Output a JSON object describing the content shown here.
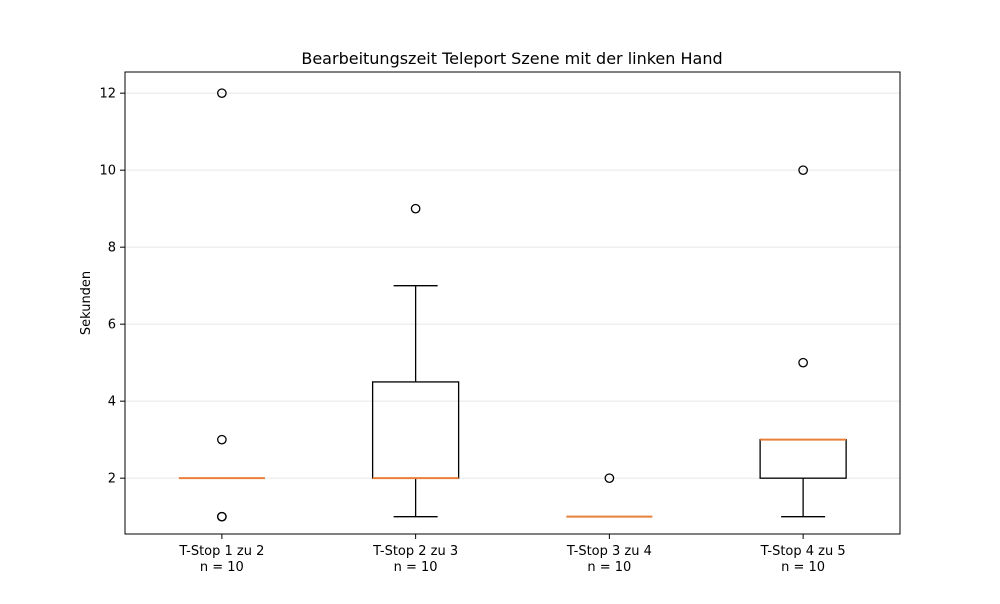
{
  "chart_data": {
    "type": "box",
    "title": "Bearbeitungszeit Teleport Szene mit der linken Hand",
    "xlabel": "",
    "ylabel": "Sekunden",
    "ylim": [
      0.55,
      12.55
    ],
    "yticks": [
      2,
      4,
      6,
      8,
      10,
      12
    ],
    "grid": "horizontal",
    "categories": [
      "T-Stop 1 zu 2\nn = 10",
      "T-Stop 2 zu 3\nn = 10",
      "T-Stop 3 zu 4\nn = 10",
      "T-Stop 4 zu 5\nn = 10"
    ],
    "boxes": [
      {
        "q1": 2,
        "median": 2,
        "q3": 2,
        "whisker_low": 2,
        "whisker_high": 2,
        "outliers": [
          12,
          3,
          1,
          1
        ]
      },
      {
        "q1": 2,
        "median": 2,
        "q3": 4.5,
        "whisker_low": 1,
        "whisker_high": 7,
        "outliers": [
          9
        ]
      },
      {
        "q1": 1,
        "median": 1,
        "q3": 1,
        "whisker_low": 1,
        "whisker_high": 1,
        "outliers": [
          2
        ]
      },
      {
        "q1": 2,
        "median": 3,
        "q3": 3,
        "whisker_low": 1,
        "whisker_high": 3,
        "outliers": [
          10,
          5
        ]
      }
    ],
    "colors": {
      "box": "#000000",
      "median": "#e8803a",
      "grid": "#e6e6e6"
    }
  }
}
